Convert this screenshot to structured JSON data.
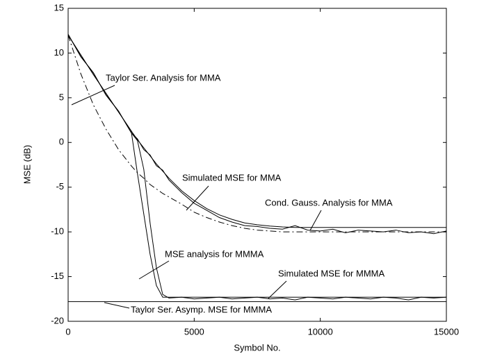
{
  "chart_data": {
    "type": "line",
    "xlabel": "Symbol No.",
    "ylabel": "MSE (dB)",
    "x": [
      0,
      500,
      1000,
      1500,
      2000,
      2500,
      2750,
      3000,
      3250,
      3500,
      3750,
      4000,
      4500,
      5000,
      5500,
      6000,
      6500,
      7000,
      7500,
      8000,
      8500,
      9000,
      9500,
      10000,
      10500,
      11000,
      11500,
      12000,
      12500,
      13000,
      13500,
      14000,
      14500,
      15000
    ],
    "xlim": [
      0,
      15000
    ],
    "xticks": [
      0,
      5000,
      10000,
      15000
    ],
    "ylim": [
      -20,
      15
    ],
    "yticks": [
      -20,
      -15,
      -10,
      -5,
      0,
      5,
      10,
      15
    ],
    "grid": false,
    "series": [
      {
        "color": "#000000",
        "dash": "solid",
        "values": [
          12,
          9.8,
          7.6,
          5.5,
          3.4,
          1.3,
          0.3,
          -0.6,
          -1.5,
          -2.4,
          -3.2,
          -4.0,
          -5.4,
          -6.5,
          -7.4,
          -8.1,
          -8.6,
          -9.0,
          -9.2,
          -9.35,
          -9.45,
          -9.5,
          -9.5,
          -9.5,
          -9.5,
          -9.5,
          -9.5,
          -9.5,
          -9.5,
          -9.5,
          -9.5,
          -9.5,
          -9.5,
          -9.5
        ]
      },
      {
        "color": "#000000",
        "dash": "solid",
        "values": [
          12.1,
          9.6,
          7.8,
          5.3,
          3.5,
          1.1,
          0.4,
          -0.8,
          -1.4,
          -2.6,
          -3.1,
          -4.2,
          -5.6,
          -6.8,
          -7.6,
          -8.4,
          -8.9,
          -9.3,
          -9.4,
          -9.6,
          -9.7,
          -9.3,
          -9.8,
          -9.9,
          -9.7,
          -10.1,
          -9.8,
          -9.9,
          -10.0,
          -9.8,
          -10.1,
          -10.0,
          -10.2,
          -9.9
        ]
      },
      {
        "color": "#000000",
        "dash": "dashdot",
        "values": [
          12,
          7.7,
          4.2,
          1.5,
          -0.8,
          -2.6,
          -3.4,
          -4.0,
          -4.7,
          -5.2,
          -5.7,
          -6.1,
          -6.9,
          -7.8,
          -8.4,
          -8.9,
          -9.3,
          -9.6,
          -9.8,
          -9.9,
          -10,
          -10,
          -10,
          -10,
          -10,
          -10,
          -10,
          -10,
          -10,
          -10,
          -10,
          -10,
          -10,
          -10
        ]
      },
      {
        "color": "#000000",
        "dash": "solid",
        "values": [
          12,
          9.8,
          7.6,
          5.5,
          3.4,
          1.3,
          -3.5,
          -8,
          -12.5,
          -16,
          -17.3,
          -17.3,
          -17.3,
          -17.3,
          -17.3,
          -17.3,
          -17.3,
          -17.3,
          -17.3,
          -17.3,
          -17.3,
          -17.3,
          -17.3,
          -17.3,
          -17.3,
          -17.3,
          -17.3,
          -17.3,
          -17.3,
          -17.3,
          -17.3,
          -17.3,
          -17.3,
          -17.3
        ]
      },
      {
        "color": "#000000",
        "dash": "solid",
        "values": [
          12.1,
          9.6,
          7.8,
          5.3,
          3.5,
          1.1,
          0.2,
          -3,
          -9,
          -14,
          -17.0,
          -17.4,
          -17.3,
          -17.5,
          -17.4,
          -17.3,
          -17.5,
          -17.4,
          -17.3,
          -17.5,
          -17.4,
          -17.6,
          -17.3,
          -17.4,
          -17.5,
          -17.3,
          -17.4,
          -17.5,
          -17.3,
          -17.4,
          -17.6,
          -17.3,
          -17.4,
          -17.3
        ]
      },
      {
        "color": "#000000",
        "dash": "solid",
        "x": [
          0,
          15000
        ],
        "values": [
          -17.8,
          -17.8
        ]
      }
    ],
    "annotations": [
      "Taylor Ser. Analysis for MMA",
      "Simulated MSE for MMA",
      "Cond. Gauss. Analysis for MMA",
      "MSE analysis for MMMA",
      "Simulated MSE for MMMA",
      "Taylor Ser. Asymp. MSE for MMMA"
    ]
  }
}
